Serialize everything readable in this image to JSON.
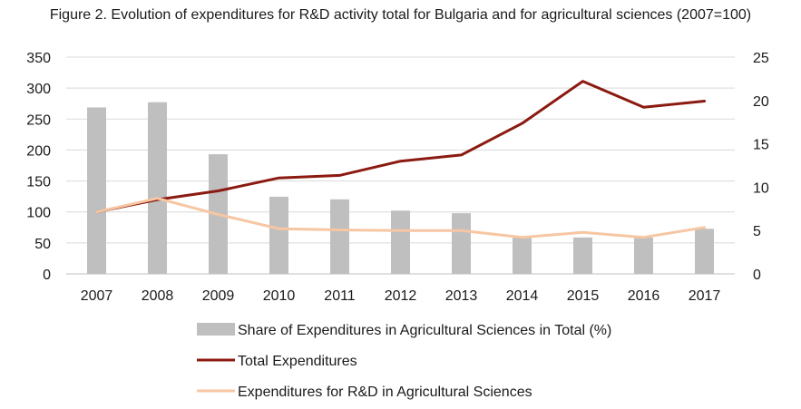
{
  "chart_data": {
    "type": "bar",
    "title": "Figure 2. Evolution of expenditures for R&D activity total for Bulgaria and for agricultural sciences (2007=100)",
    "categories": [
      "2007",
      "2008",
      "2009",
      "2010",
      "2011",
      "2012",
      "2013",
      "2014",
      "2015",
      "2016",
      "2017"
    ],
    "series": [
      {
        "name": "Share of Expenditures in Agricultural Sciences in Total (%)",
        "type": "bar",
        "axis": "right",
        "color": "#bfbfbf",
        "values": [
          19.2,
          19.8,
          13.8,
          8.9,
          8.6,
          7.3,
          7.0,
          4.3,
          4.2,
          4.2,
          5.2
        ]
      },
      {
        "name": "Total Expenditures",
        "type": "line",
        "axis": "left",
        "color": "#8b1a10",
        "values": [
          100,
          120,
          134,
          155,
          159,
          182,
          192,
          243,
          311,
          269,
          279
        ]
      },
      {
        "name": "Expenditures for R&D in Agricultural Sciences",
        "type": "line",
        "axis": "left",
        "color": "#f7c6a3",
        "values": [
          100,
          122,
          96,
          73,
          71,
          70,
          70,
          59,
          67,
          59,
          75
        ]
      }
    ],
    "yaxis_left": {
      "min": 0,
      "max": 350,
      "ticks": [
        0,
        50,
        100,
        150,
        200,
        250,
        300,
        350
      ]
    },
    "yaxis_right": {
      "min": 0,
      "max": 25,
      "ticks": [
        0,
        5,
        10,
        15,
        20,
        25
      ]
    },
    "grid": true,
    "legend_position": "bottom"
  }
}
